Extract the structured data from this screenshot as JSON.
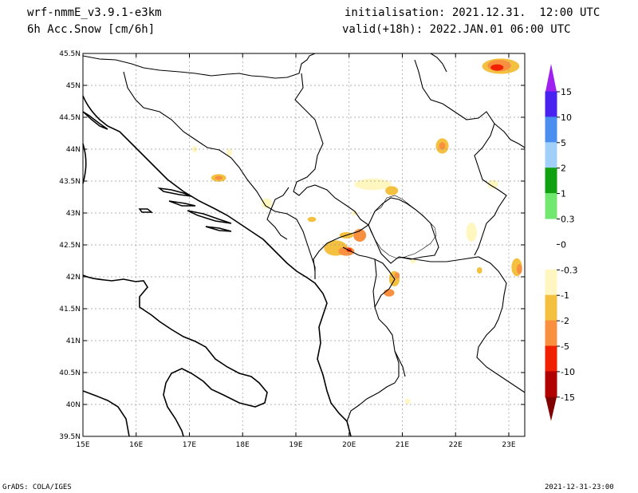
{
  "header": {
    "model": "wrf-nmmE_v3.9.1-e3km",
    "field": "6h Acc.Snow [cm/6h]",
    "init": "initialisation: 2021.12.31.  12:00 UTC",
    "valid": "valid(+18h): 2022.JAN.01 06:00 UTC"
  },
  "footer": {
    "credit": "GrADS: COLA/IGES",
    "timestamp": "2021-12-31-23:00"
  },
  "map": {
    "lon_ticks": [
      "15E",
      "16E",
      "17E",
      "18E",
      "19E",
      "20E",
      "21E",
      "22E",
      "23E"
    ],
    "lat_ticks": [
      "45.5N",
      "45N",
      "44.5N",
      "44N",
      "43.5N",
      "43N",
      "42.5N",
      "42N",
      "41.5N",
      "41N",
      "40.5N",
      "40N",
      "39.5N"
    ],
    "lon_values": [
      15,
      16,
      17,
      18,
      19,
      20,
      21,
      22,
      23
    ],
    "lat_values": [
      45.5,
      45,
      44.5,
      44,
      43.5,
      43,
      42.5,
      42,
      41.5,
      41,
      40.5,
      40,
      39.5
    ]
  },
  "colorbar": {
    "labels": [
      "15",
      "10",
      "5",
      "2",
      "1",
      "0.3",
      "0",
      "-0.3",
      "-1",
      "-2",
      "-5",
      "-10",
      "-15"
    ],
    "colors": [
      "#4a22f0",
      "#4a8ef0",
      "#a0d0f8",
      "#10a010",
      "#70e870",
      "#ffffff",
      "#ffffff",
      "#fff6c0",
      "#f4c040",
      "#f89040",
      "#f02000",
      "#b00000",
      "#800000"
    ],
    "top_arrow_color": "#a020f0",
    "bottom_arrow_color": "#800000"
  },
  "snow_patches": [
    {
      "lon": 22.85,
      "lat": 45.3,
      "rx": 0.35,
      "ry": 0.12,
      "color": "#f4c040"
    },
    {
      "lon": 22.82,
      "lat": 45.31,
      "rx": 0.22,
      "ry": 0.09,
      "color": "#f89040"
    },
    {
      "lon": 22.78,
      "lat": 45.28,
      "rx": 0.12,
      "ry": 0.05,
      "color": "#f02000"
    },
    {
      "lon": 21.75,
      "lat": 44.05,
      "rx": 0.12,
      "ry": 0.12,
      "color": "#f4c040"
    },
    {
      "lon": 21.75,
      "lat": 44.05,
      "rx": 0.06,
      "ry": 0.06,
      "color": "#f89040"
    },
    {
      "lon": 17.55,
      "lat": 43.55,
      "rx": 0.14,
      "ry": 0.06,
      "color": "#f4c040"
    },
    {
      "lon": 17.55,
      "lat": 43.55,
      "rx": 0.07,
      "ry": 0.03,
      "color": "#f89040"
    },
    {
      "lon": 20.45,
      "lat": 43.45,
      "rx": 0.35,
      "ry": 0.09,
      "color": "#fff6c0"
    },
    {
      "lon": 20.8,
      "lat": 43.35,
      "rx": 0.12,
      "ry": 0.07,
      "color": "#f4c040"
    },
    {
      "lon": 18.45,
      "lat": 43.15,
      "rx": 0.1,
      "ry": 0.08,
      "color": "#fff6c0"
    },
    {
      "lon": 19.3,
      "lat": 42.9,
      "rx": 0.08,
      "ry": 0.04,
      "color": "#f4c040"
    },
    {
      "lon": 19.75,
      "lat": 42.45,
      "rx": 0.22,
      "ry": 0.12,
      "color": "#f4c040"
    },
    {
      "lon": 19.95,
      "lat": 42.4,
      "rx": 0.15,
      "ry": 0.07,
      "color": "#f89040"
    },
    {
      "lon": 20.0,
      "lat": 42.42,
      "rx": 0.05,
      "ry": 0.03,
      "color": "#f02000"
    },
    {
      "lon": 20.2,
      "lat": 42.65,
      "rx": 0.12,
      "ry": 0.1,
      "color": "#f89040"
    },
    {
      "lon": 19.95,
      "lat": 42.65,
      "rx": 0.13,
      "ry": 0.05,
      "color": "#f4c040"
    },
    {
      "lon": 20.85,
      "lat": 41.97,
      "rx": 0.1,
      "ry": 0.12,
      "color": "#f4c040"
    },
    {
      "lon": 20.75,
      "lat": 41.75,
      "rx": 0.1,
      "ry": 0.06,
      "color": "#f89040"
    },
    {
      "lon": 20.9,
      "lat": 42.02,
      "rx": 0.05,
      "ry": 0.05,
      "color": "#f89040"
    },
    {
      "lon": 23.15,
      "lat": 42.15,
      "rx": 0.1,
      "ry": 0.14,
      "color": "#f4c040"
    },
    {
      "lon": 23.2,
      "lat": 42.12,
      "rx": 0.05,
      "ry": 0.08,
      "color": "#f89040"
    },
    {
      "lon": 22.3,
      "lat": 42.7,
      "rx": 0.1,
      "ry": 0.15,
      "color": "#fff6c0"
    },
    {
      "lon": 22.45,
      "lat": 42.1,
      "rx": 0.05,
      "ry": 0.05,
      "color": "#f4c040"
    },
    {
      "lon": 21.2,
      "lat": 42.25,
      "rx": 0.05,
      "ry": 0.04,
      "color": "#fff6c0"
    },
    {
      "lon": 22.7,
      "lat": 43.45,
      "rx": 0.1,
      "ry": 0.07,
      "color": "#fff6c0"
    },
    {
      "lon": 17.1,
      "lat": 44.0,
      "rx": 0.05,
      "ry": 0.05,
      "color": "#fff6c0"
    },
    {
      "lon": 17.75,
      "lat": 43.95,
      "rx": 0.05,
      "ry": 0.06,
      "color": "#fff6c0"
    },
    {
      "lon": 20.1,
      "lat": 43.0,
      "rx": 0.05,
      "ry": 0.04,
      "color": "#fff6c0"
    },
    {
      "lon": 21.1,
      "lat": 40.05,
      "rx": 0.05,
      "ry": 0.04,
      "color": "#fff6c0"
    }
  ]
}
